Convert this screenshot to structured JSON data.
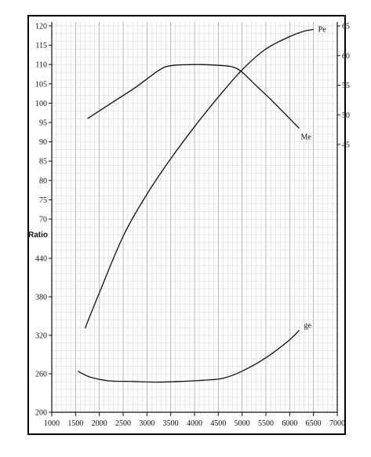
{
  "chart_data": {
    "type": "line",
    "title": "",
    "xlabel": "",
    "x_ticks": [
      1000,
      1500,
      2000,
      2500,
      3000,
      3500,
      4000,
      4500,
      5000,
      5500,
      6000,
      6500,
      7000
    ],
    "left_axis_label": "Ratio",
    "left_upper_ticks": [
      120,
      115,
      110,
      105,
      100,
      95,
      90,
      85,
      80,
      75,
      70
    ],
    "left_lower_ticks": [
      440,
      380,
      320,
      260,
      200
    ],
    "right_ticks": [
      65,
      60,
      55,
      50,
      45
    ],
    "grid": true,
    "series": [
      {
        "name": "Me",
        "axis": "left_upper",
        "x": [
          1750,
          2250,
          2750,
          3250,
          3500,
          4000,
          4500,
          4800,
          5000,
          5300,
          5600,
          6000,
          6200
        ],
        "y": [
          96,
          100,
          104,
          108.5,
          109.7,
          110,
          109.8,
          109.4,
          108,
          104.5,
          101,
          96,
          93.5
        ]
      },
      {
        "name": "Pe",
        "axis": "right",
        "x": [
          1700,
          2000,
          2500,
          3000,
          3500,
          4000,
          4500,
          5000,
          5500,
          6000,
          6300,
          6500
        ],
        "y": [
          14,
          20,
          29.5,
          36.6,
          42.6,
          48,
          53,
          57.6,
          61.1,
          63.2,
          64.1,
          64.4
        ]
      },
      {
        "name": "ge",
        "axis": "left_lower",
        "x": [
          1550,
          1800,
          2200,
          2700,
          3200,
          3700,
          4200,
          4600,
          5000,
          5500,
          6000,
          6200
        ],
        "y": [
          264,
          255,
          249,
          248,
          247,
          248,
          250,
          253,
          264,
          285,
          313,
          328
        ]
      }
    ]
  }
}
